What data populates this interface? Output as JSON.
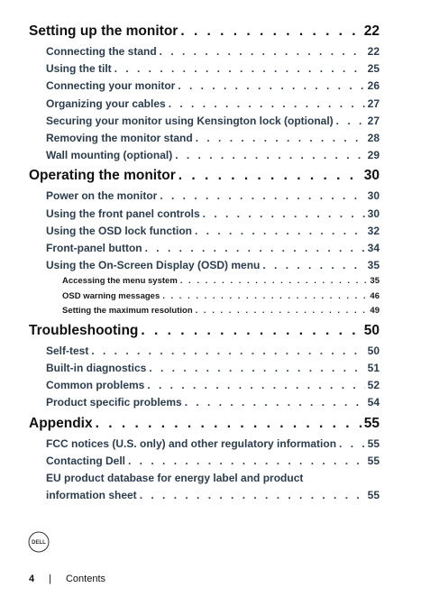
{
  "toc": {
    "sec1": {
      "title": "Setting up the monitor",
      "page": "22",
      "items": [
        {
          "title": "Connecting the stand",
          "page": "22"
        },
        {
          "title": "Using the tilt",
          "page": "25"
        },
        {
          "title": "Connecting your monitor",
          "page": "26"
        },
        {
          "title": "Organizing your cables",
          "page": "27"
        },
        {
          "title": "Securing your monitor using Kensington lock (optional)",
          "page": "27"
        },
        {
          "title": "Removing the monitor stand",
          "page": "28"
        },
        {
          "title": "Wall mounting (optional)",
          "page": "29"
        }
      ]
    },
    "sec2": {
      "title": "Operating the monitor",
      "page": "30",
      "items": [
        {
          "title": "Power on the monitor",
          "page": "30"
        },
        {
          "title": "Using the front panel controls",
          "page": "30"
        },
        {
          "title": "Using the OSD lock function",
          "page": "32"
        },
        {
          "title": "Front-panel button",
          "page": "34"
        },
        {
          "title": "Using the On-Screen Display (OSD) menu",
          "page": "35"
        }
      ],
      "subitems": [
        {
          "title": "Accessing the menu system",
          "page": "35"
        },
        {
          "title": "OSD warning messages",
          "page": "46"
        },
        {
          "title": "Setting the maximum resolution",
          "page": "49"
        }
      ]
    },
    "sec3": {
      "title": "Troubleshooting",
      "page": "50",
      "items": [
        {
          "title": "Self-test",
          "page": "50"
        },
        {
          "title": "Built-in diagnostics",
          "page": "51"
        },
        {
          "title": "Common problems",
          "page": "52"
        },
        {
          "title": "Product specific problems",
          "page": "54"
        }
      ]
    },
    "sec4": {
      "title": "Appendix",
      "page": "55",
      "items": [
        {
          "title": "FCC notices (U.S. only) and other regulatory information",
          "page": "55"
        },
        {
          "title": "Contacting Dell",
          "page": "55"
        }
      ],
      "multi": {
        "line1": "EU product database for energy label and product",
        "line2": "information sheet",
        "page": "55"
      }
    }
  },
  "logo": {
    "text": "DELL"
  },
  "footer": {
    "page_number": "4",
    "separator": "|",
    "label": "Contents"
  }
}
